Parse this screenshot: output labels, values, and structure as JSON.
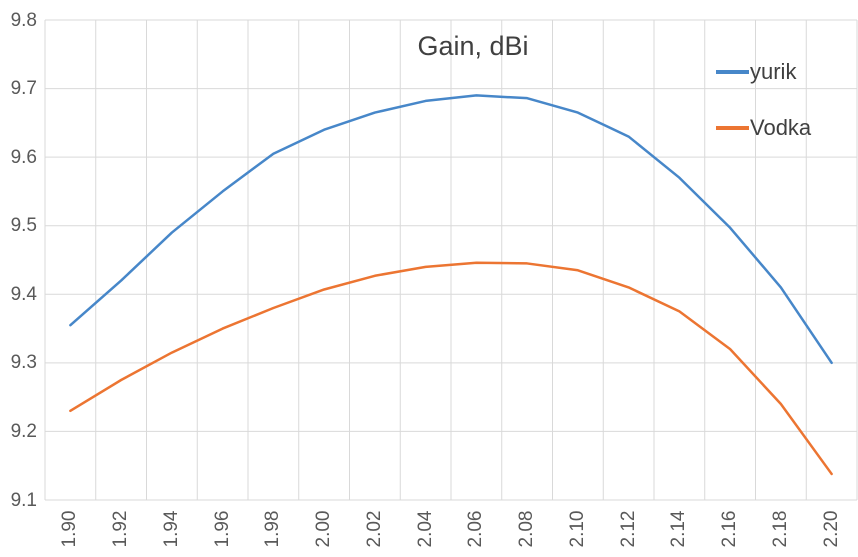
{
  "chart_data": {
    "type": "line",
    "title": "Gain, dBi",
    "x_tick_labels": [
      "1.90",
      "1.92",
      "1.94",
      "1.96",
      "1.98",
      "2.00",
      "2.02",
      "2.04",
      "2.06",
      "2.08",
      "2.10",
      "2.12",
      "2.14",
      "2.16",
      "2.18",
      "2.20"
    ],
    "y_tick_labels": [
      "9.8",
      "9.7",
      "9.6",
      "9.5",
      "9.4",
      "9.3",
      "9.2",
      "9.1"
    ],
    "ylim": [
      9.1,
      9.8
    ],
    "xlabel": "",
    "ylabel": "",
    "grid": true,
    "x_label_rotation": 90,
    "legend_position": "inside-top-right",
    "series": [
      {
        "name": "yurik",
        "color": "#4787c9",
        "values": [
          9.355,
          9.42,
          9.49,
          9.55,
          9.605,
          9.64,
          9.665,
          9.682,
          9.69,
          9.686,
          9.665,
          9.63,
          9.57,
          9.497,
          9.41,
          9.3
        ]
      },
      {
        "name": "Vodka",
        "color": "#ec7532",
        "values": [
          9.23,
          9.275,
          9.315,
          9.35,
          9.38,
          9.407,
          9.427,
          9.44,
          9.446,
          9.445,
          9.435,
          9.41,
          9.375,
          9.32,
          9.24,
          9.138
        ]
      }
    ]
  },
  "colors": {
    "gridline": "#d9d9d9",
    "axis_text": "#595959",
    "title_text": "#404040",
    "background": "#ffffff"
  }
}
